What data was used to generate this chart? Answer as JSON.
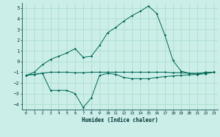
{
  "title": "",
  "xlabel": "Humidex (Indice chaleur)",
  "background_color": "#cceee8",
  "grid_color": "#aaddcc",
  "line_color": "#006655",
  "xlim": [
    -0.5,
    23.5
  ],
  "ylim": [
    -4.5,
    5.5
  ],
  "yticks": [
    -4,
    -3,
    -2,
    -1,
    0,
    1,
    2,
    3,
    4,
    5
  ],
  "xticks": [
    0,
    1,
    2,
    3,
    4,
    5,
    6,
    7,
    8,
    9,
    10,
    11,
    12,
    13,
    14,
    15,
    16,
    17,
    18,
    19,
    20,
    21,
    22,
    23
  ],
  "x": [
    0,
    1,
    2,
    3,
    4,
    5,
    6,
    7,
    8,
    9,
    10,
    11,
    12,
    13,
    14,
    15,
    16,
    17,
    18,
    19,
    20,
    21,
    22,
    23
  ],
  "line1": [
    -1.3,
    -1.2,
    -1.1,
    -1.0,
    -1.0,
    -1.0,
    -1.05,
    -1.05,
    -1.0,
    -1.0,
    -1.0,
    -1.0,
    -1.0,
    -1.0,
    -1.0,
    -1.0,
    -1.0,
    -1.0,
    -1.05,
    -1.05,
    -1.1,
    -1.1,
    -1.05,
    -1.0
  ],
  "line2": [
    -1.3,
    -1.2,
    -1.1,
    -2.7,
    -2.7,
    -2.7,
    -3.0,
    -4.3,
    -3.4,
    -1.3,
    -1.1,
    -1.2,
    -1.5,
    -1.6,
    -1.6,
    -1.6,
    -1.5,
    -1.4,
    -1.35,
    -1.3,
    -1.25,
    -1.2,
    -1.15,
    -1.0
  ],
  "line3": [
    -1.3,
    -1.0,
    -0.3,
    0.2,
    0.5,
    0.8,
    1.2,
    0.4,
    0.5,
    1.5,
    2.7,
    3.2,
    3.8,
    4.3,
    4.7,
    5.2,
    4.5,
    2.5,
    0.1,
    -0.9,
    -1.1,
    -1.2,
    -1.0,
    -1.0
  ]
}
